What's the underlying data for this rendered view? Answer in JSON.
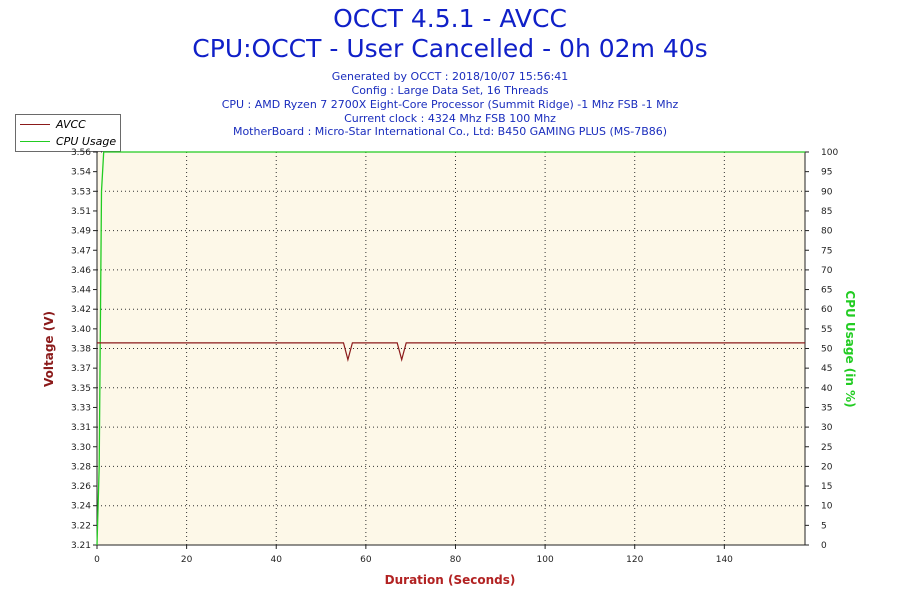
{
  "header": {
    "title": "OCCT 4.5.1 - AVCC",
    "subtitle": "CPU:OCCT - User Cancelled - 0h 02m 40s",
    "info_lines": [
      "Generated by OCCT : 2018/10/07 15:56:41",
      "Config : Large Data Set, 16 Threads",
      "CPU : AMD Ryzen 7 2700X Eight-Core Processor (Summit Ridge) -1 Mhz FSB -1 Mhz",
      "Current clock : 4324 Mhz FSB 100 Mhz",
      "MotherBoard : Micro-Star International Co., Ltd: B450 GAMING PLUS (MS-7B86)"
    ]
  },
  "colors": {
    "title": "#1020c8",
    "info": "#1a2dbd",
    "avcc": "#8b1a1a",
    "cpu": "#22cc22",
    "plot_bg": "#fdf8e8",
    "xlabel": "#b22222"
  },
  "chart_data": {
    "type": "line",
    "xlabel": "Duration (Seconds)",
    "ylabel_left": "Voltage (V)",
    "ylabel_right": "CPU Usage (in %)",
    "xlim": [
      0,
      158
    ],
    "x_ticks": [
      0,
      20,
      40,
      60,
      80,
      100,
      120,
      140
    ],
    "ylim_left": [
      3.21,
      3.56
    ],
    "y_ticks_left": [
      "3.21",
      "3.22",
      "3.24",
      "3.26",
      "3.28",
      "3.30",
      "3.31",
      "3.33",
      "3.35",
      "3.37",
      "3.38",
      "3.40",
      "3.42",
      "3.44",
      "3.46",
      "3.47",
      "3.49",
      "3.51",
      "3.53",
      "3.54",
      "3.56"
    ],
    "ylim_right": [
      0,
      100
    ],
    "y_ticks_right": [
      0,
      5,
      10,
      15,
      20,
      25,
      30,
      35,
      40,
      45,
      50,
      55,
      60,
      65,
      70,
      75,
      80,
      85,
      90,
      95,
      100
    ],
    "legend_position": "top-left",
    "grid": true,
    "series": [
      {
        "name": "AVCC",
        "axis": "left",
        "x": [
          0,
          55,
          56,
          57,
          67,
          68,
          69,
          158
        ],
        "y": [
          3.39,
          3.39,
          3.375,
          3.39,
          3.39,
          3.375,
          3.39,
          3.39
        ]
      },
      {
        "name": "CPU Usage",
        "axis": "right",
        "x": [
          0,
          0.5,
          1,
          1.5,
          158
        ],
        "y": [
          0,
          20,
          90,
          100,
          100
        ]
      }
    ]
  }
}
